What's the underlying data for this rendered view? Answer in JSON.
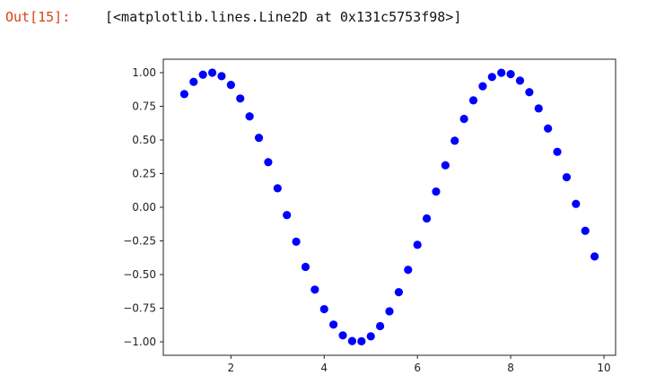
{
  "cell": {
    "out_prompt": "Out[15]:",
    "out_text": "[<matplotlib.lines.Line2D at 0x131c5753f98>]"
  },
  "chart_data": {
    "type": "scatter",
    "title": "",
    "xlabel": "",
    "ylabel": "",
    "xlim": [
      0.55,
      10.25
    ],
    "ylim": [
      -1.1,
      1.1
    ],
    "xticks": [
      2,
      4,
      6,
      8,
      10
    ],
    "xtick_labels": [
      "2",
      "4",
      "6",
      "8",
      "10"
    ],
    "yticks": [
      1.0,
      0.75,
      0.5,
      0.25,
      0.0,
      -0.25,
      -0.5,
      -0.75,
      -1.0
    ],
    "ytick_labels": [
      "1.00",
      "0.75",
      "0.50",
      "0.25",
      "0.00",
      "−0.25",
      "−0.50",
      "−0.75",
      "−1.00"
    ],
    "grid": false,
    "marker_color": "#0000ff",
    "series": [
      {
        "x": [
          1.0,
          1.2,
          1.4,
          1.6,
          1.8,
          2.0,
          2.2,
          2.4,
          2.6,
          2.8,
          3.0,
          3.2,
          3.4,
          3.6,
          3.8,
          4.0,
          4.2,
          4.4,
          4.6,
          4.8,
          5.0,
          5.2,
          5.4,
          5.6,
          5.8,
          6.0,
          6.2,
          6.4,
          6.6,
          6.8,
          7.0,
          7.2,
          7.4,
          7.6,
          7.8,
          8.0,
          8.2,
          8.4,
          8.6,
          8.8,
          9.0,
          9.2,
          9.4,
          9.6,
          9.8
        ],
        "y": [
          0.841,
          0.932,
          0.985,
          1.0,
          0.974,
          0.909,
          0.808,
          0.675,
          0.516,
          0.335,
          0.141,
          -0.058,
          -0.256,
          -0.443,
          -0.612,
          -0.757,
          -0.872,
          -0.952,
          -0.994,
          -0.996,
          -0.959,
          -0.883,
          -0.773,
          -0.631,
          -0.465,
          -0.279,
          -0.083,
          0.117,
          0.312,
          0.494,
          0.657,
          0.794,
          0.899,
          0.968,
          0.999,
          0.989,
          0.941,
          0.855,
          0.734,
          0.585,
          0.412,
          0.223,
          0.025,
          -0.175,
          -0.366
        ]
      }
    ]
  }
}
